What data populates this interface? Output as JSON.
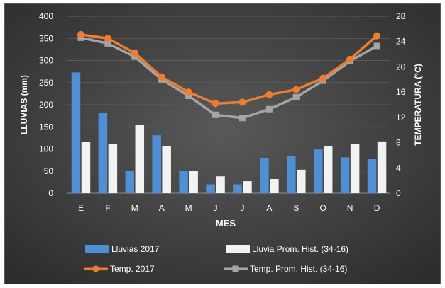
{
  "chart_data": {
    "type": "combo-bar-line",
    "xlabel": "MES",
    "ylabel_left": "LLUVIAS (mm)",
    "ylabel_right": "TEMPERATURA (°C)",
    "categories": [
      "E",
      "F",
      "M",
      "A",
      "M",
      "J",
      "J",
      "A",
      "S",
      "O",
      "N",
      "D"
    ],
    "ylim_left": [
      0,
      400
    ],
    "yticks_left": [
      0,
      50,
      100,
      150,
      200,
      250,
      300,
      350,
      400
    ],
    "ylim_right": [
      0,
      28
    ],
    "yticks_right": [
      0,
      4,
      8,
      12,
      16,
      20,
      24,
      28
    ],
    "bar_series": [
      {
        "name": "Lluvias 2017",
        "color": "#4e8fd6",
        "values": [
          273,
          181,
          50,
          131,
          51,
          20,
          20,
          80,
          84,
          99,
          81,
          78
        ]
      },
      {
        "name": "Lluvia Prom. Hist. (34-16)",
        "color": "#f2f2f2",
        "values": [
          116,
          112,
          155,
          106,
          51,
          38,
          27,
          32,
          53,
          106,
          111,
          117
        ]
      }
    ],
    "line_series": [
      {
        "name": "Temp. 2017",
        "color": "#ed7d31",
        "marker": "circle",
        "values": [
          25.1,
          24.5,
          22.2,
          18.4,
          16.0,
          14.2,
          14.4,
          15.6,
          16.4,
          18.2,
          21.2,
          24.9
        ]
      },
      {
        "name": "Temp. Prom. Hist. (34-16)",
        "color": "#a5a5a5",
        "marker": "square",
        "values": [
          24.6,
          23.7,
          21.6,
          18.0,
          15.4,
          12.4,
          11.9,
          13.3,
          15.2,
          17.8,
          20.9,
          23.3
        ]
      }
    ]
  }
}
